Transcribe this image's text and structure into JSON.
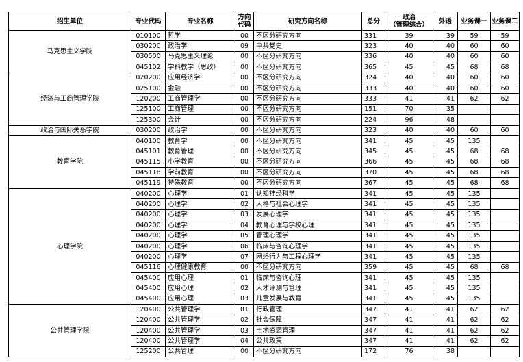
{
  "headers": {
    "unit": "招生单位",
    "code": "专业代码",
    "major": "专业名称",
    "dir_code": "方向代码",
    "dir_name": "研究方向名称",
    "total": "总分",
    "politics": "政治\n（管理综合）",
    "foreign": "外语",
    "course1": "业务课一",
    "course2": "业务课二"
  },
  "groups": [
    {
      "unit": "马克思主义学院",
      "rows": [
        [
          "010100",
          "哲学",
          "00",
          "不区分研究方向",
          "331",
          "39",
          "39",
          "59",
          "59"
        ],
        [
          "030200",
          "政治学",
          "09",
          "中共党史",
          "323",
          "40",
          "40",
          "60",
          "60"
        ],
        [
          "030500",
          "马克思主义理论",
          "00",
          "不区分研究方向",
          "336",
          "40",
          "40",
          "60",
          "60"
        ],
        [
          "045102",
          "学科教学（思政）",
          "00",
          "不区分研究方向",
          "365",
          "45",
          "45",
          "68",
          "68"
        ]
      ]
    },
    {
      "unit": "经济与工商管理学院",
      "rows": [
        [
          "020200",
          "应用经济学",
          "00",
          "不区分研究方向",
          "324",
          "40",
          "40",
          "60",
          "60"
        ],
        [
          "025100",
          "金融",
          "00",
          "不区分研究方向",
          "333",
          "40",
          "40",
          "60",
          "60"
        ],
        [
          "120200",
          "工商管理学",
          "00",
          "不区分研究方向",
          "333",
          "41",
          "41",
          "62",
          "62"
        ],
        [
          "125100",
          "工商管理",
          "00",
          "不区分研究方向",
          "151",
          "70",
          "35",
          "",
          ""
        ],
        [
          "125300",
          "会计",
          "00",
          "不区分研究方向",
          "224",
          "96",
          "48",
          "",
          ""
        ]
      ]
    },
    {
      "unit": "政治与国际关系学院",
      "rows": [
        [
          "030200",
          "政治学",
          "00",
          "不区分研究方向",
          "323",
          "40",
          "40",
          "60",
          "60"
        ]
      ]
    },
    {
      "unit": "教育学院",
      "rows": [
        [
          "040100",
          "教育学",
          "00",
          "不区分研究方向",
          "341",
          "45",
          "45",
          "135",
          ""
        ],
        [
          "045101",
          "教育管理",
          "00",
          "不区分研究方向",
          "345",
          "45",
          "45",
          "68",
          "68"
        ],
        [
          "045115",
          "小学教育",
          "00",
          "不区分研究方向",
          "366",
          "45",
          "45",
          "68",
          "68"
        ],
        [
          "045118",
          "学前教育",
          "00",
          "不区分研究方向",
          "370",
          "45",
          "45",
          "68",
          "68"
        ],
        [
          "045119",
          "特殊教育",
          "00",
          "不区分研究方向",
          "367",
          "45",
          "45",
          "68",
          "68"
        ]
      ]
    },
    {
      "unit": "心理学院",
      "rows": [
        [
          "040200",
          "心理学",
          "01",
          "认知神经科学",
          "341",
          "45",
          "45",
          "135",
          ""
        ],
        [
          "040200",
          "心理学",
          "02",
          "人格与社会心理学",
          "341",
          "45",
          "45",
          "135",
          ""
        ],
        [
          "040200",
          "心理学",
          "03",
          "发展心理学",
          "341",
          "45",
          "45",
          "135",
          ""
        ],
        [
          "040200",
          "心理学",
          "04",
          "教育心理与学校心理",
          "341",
          "45",
          "45",
          "135",
          ""
        ],
        [
          "040200",
          "心理学",
          "05",
          "管理心理学",
          "341",
          "45",
          "45",
          "135",
          ""
        ],
        [
          "040200",
          "心理学",
          "06",
          "临床与咨询心理学",
          "341",
          "45",
          "45",
          "135",
          ""
        ],
        [
          "040200",
          "心理学",
          "07",
          "网络行为与工程心理学",
          "341",
          "45",
          "45",
          "135",
          ""
        ],
        [
          "045116",
          "心理健康教育",
          "00",
          "不区分研究方向",
          "359",
          "45",
          "45",
          "68",
          "68"
        ],
        [
          "045400",
          "应用心理",
          "01",
          "临床与咨询心理",
          "341",
          "45",
          "45",
          "135",
          ""
        ],
        [
          "045400",
          "应用心理",
          "02",
          "人才评测与管理",
          "341",
          "45",
          "45",
          "135",
          ""
        ],
        [
          "045400",
          "应用心理",
          "03",
          "儿童发展与教育",
          "341",
          "45",
          "45",
          "135",
          ""
        ]
      ]
    },
    {
      "unit": "公共管理学院",
      "rows": [
        [
          "120400",
          "公共管理学",
          "01",
          "行政管理",
          "347",
          "41",
          "41",
          "62",
          "62"
        ],
        [
          "120400",
          "公共管理学",
          "02",
          "社会保障",
          "347",
          "41",
          "41",
          "62",
          "62"
        ],
        [
          "120400",
          "公共管理学",
          "03",
          "土地资源管理",
          "347",
          "41",
          "41",
          "62",
          "62"
        ],
        [
          "120400",
          "公共管理学",
          "04",
          "公共政策",
          "347",
          "41",
          "41",
          "62",
          "62"
        ],
        [
          "125200",
          "公共管理",
          "00",
          "不区分研究方向",
          "172",
          "76",
          "38",
          "",
          ""
        ]
      ]
    }
  ]
}
